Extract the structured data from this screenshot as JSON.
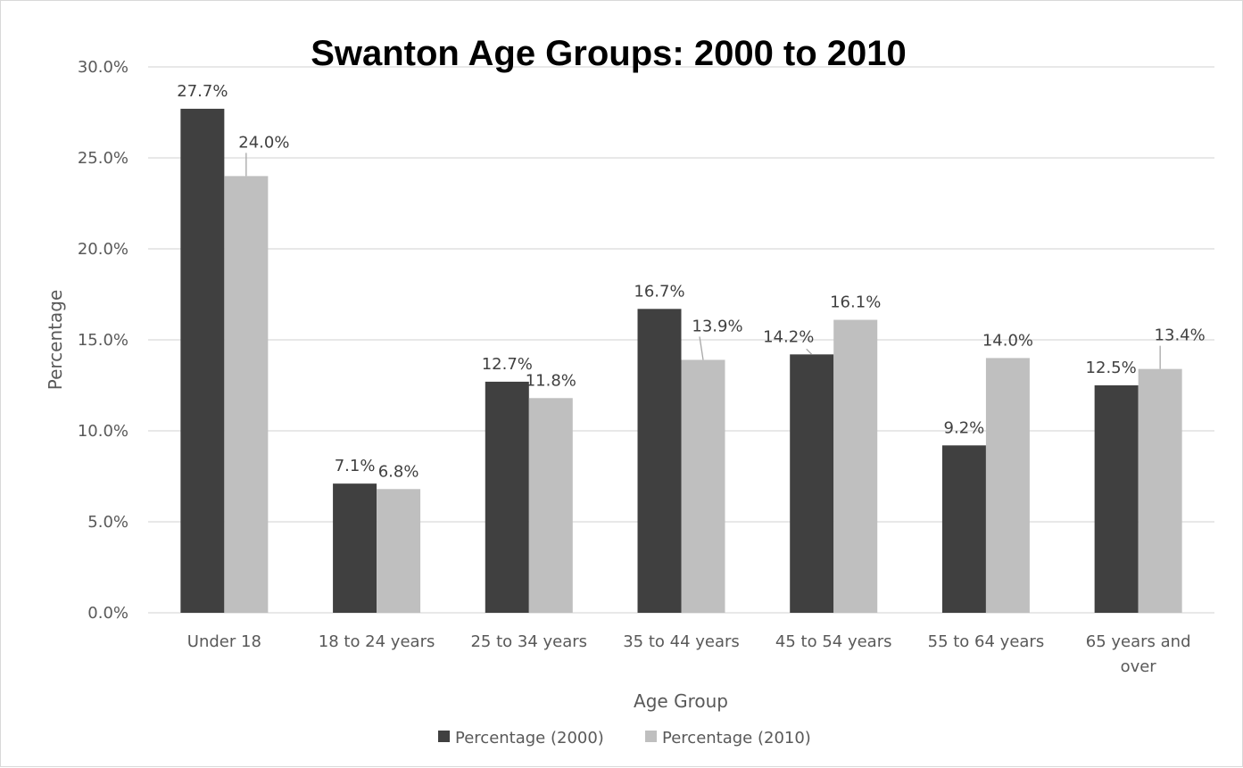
{
  "chart_data": {
    "type": "bar",
    "title": "Swanton Age Groups: 2000 to 2010",
    "xlabel": "Age Group",
    "ylabel": "Percentage",
    "categories": [
      "Under 18",
      "18 to 24 years",
      "25 to 34 years",
      "35 to 44 years",
      "45 to 54 years",
      "55 to 64 years",
      "65 years and over"
    ],
    "series": [
      {
        "name": "Percentage (2000)",
        "color": "#404040",
        "values": [
          27.7,
          7.1,
          12.7,
          16.7,
          14.2,
          9.2,
          12.5
        ],
        "labels": [
          "27.7%",
          "7.1%",
          "12.7%",
          "16.7%",
          "14.2%",
          "9.2%",
          "12.5%"
        ]
      },
      {
        "name": "Percentage (2010)",
        "color": "#bfbfbf",
        "values": [
          24.0,
          6.8,
          11.8,
          13.9,
          16.1,
          14.0,
          13.4
        ],
        "labels": [
          "24.0%",
          "6.8%",
          "11.8%",
          "13.9%",
          "16.1%",
          "14.0%",
          "13.4%"
        ]
      }
    ],
    "ylim": [
      0,
      30
    ],
    "yticks": [
      0,
      5,
      10,
      15,
      20,
      25,
      30
    ],
    "ytick_labels": [
      "0.0%",
      "5.0%",
      "10.0%",
      "15.0%",
      "20.0%",
      "25.0%",
      "30.0%"
    ],
    "grid": true,
    "legend_position": "bottom"
  }
}
